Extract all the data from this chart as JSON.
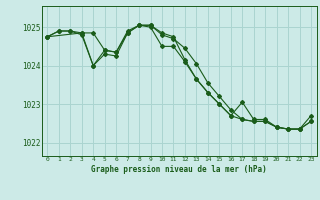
{
  "title": "Graphe pression niveau de la mer (hPa)",
  "background_color": "#cceae7",
  "grid_color": "#aad4d0",
  "line_color": "#1a5c1a",
  "xlim": [
    -0.5,
    23.5
  ],
  "ylim": [
    1021.65,
    1025.55
  ],
  "yticks": [
    1022,
    1023,
    1024,
    1025
  ],
  "xticks": [
    0,
    1,
    2,
    3,
    4,
    5,
    6,
    7,
    8,
    9,
    10,
    11,
    12,
    13,
    14,
    15,
    16,
    17,
    18,
    19,
    20,
    21,
    22,
    23
  ],
  "series": [
    {
      "x": [
        0,
        1,
        2,
        3,
        4,
        5,
        6,
        7,
        8,
        9,
        10,
        11,
        12,
        13,
        14,
        15,
        16,
        17,
        18,
        19,
        20,
        21,
        22,
        23
      ],
      "y": [
        1024.75,
        1024.9,
        1024.9,
        1024.85,
        1024.85,
        1024.4,
        1024.35,
        1024.85,
        1025.05,
        1025.05,
        1024.85,
        1024.75,
        1024.15,
        1023.65,
        1023.3,
        1023.0,
        1022.7,
        1022.6,
        1022.55,
        1022.55,
        1022.4,
        1022.35,
        1022.35,
        1022.55
      ]
    },
    {
      "x": [
        0,
        1,
        2,
        3,
        4,
        5,
        6,
        7,
        8,
        9,
        10,
        11,
        12,
        13,
        14,
        15,
        16,
        17,
        18,
        19,
        20,
        21,
        22,
        23
      ],
      "y": [
        1024.75,
        1024.9,
        1024.9,
        1024.8,
        1024.0,
        1024.4,
        1024.35,
        1024.9,
        1025.05,
        1025.05,
        1024.8,
        1024.7,
        1024.45,
        1024.05,
        1023.55,
        1023.2,
        1022.85,
        1022.6,
        1022.55,
        1022.55,
        1022.4,
        1022.35,
        1022.35,
        1022.55
      ]
    },
    {
      "x": [
        0,
        3,
        4,
        5,
        6,
        7,
        8,
        9,
        10,
        11,
        12,
        13,
        14,
        15,
        16,
        17,
        18,
        19,
        20,
        21,
        22,
        23
      ],
      "y": [
        1024.75,
        1024.85,
        1024.0,
        1024.3,
        1024.25,
        1024.85,
        1025.05,
        1025.0,
        1024.5,
        1024.5,
        1024.1,
        1023.65,
        1023.3,
        1023.0,
        1022.7,
        1023.05,
        1022.6,
        1022.6,
        1022.4,
        1022.35,
        1022.35,
        1022.7
      ]
    }
  ]
}
